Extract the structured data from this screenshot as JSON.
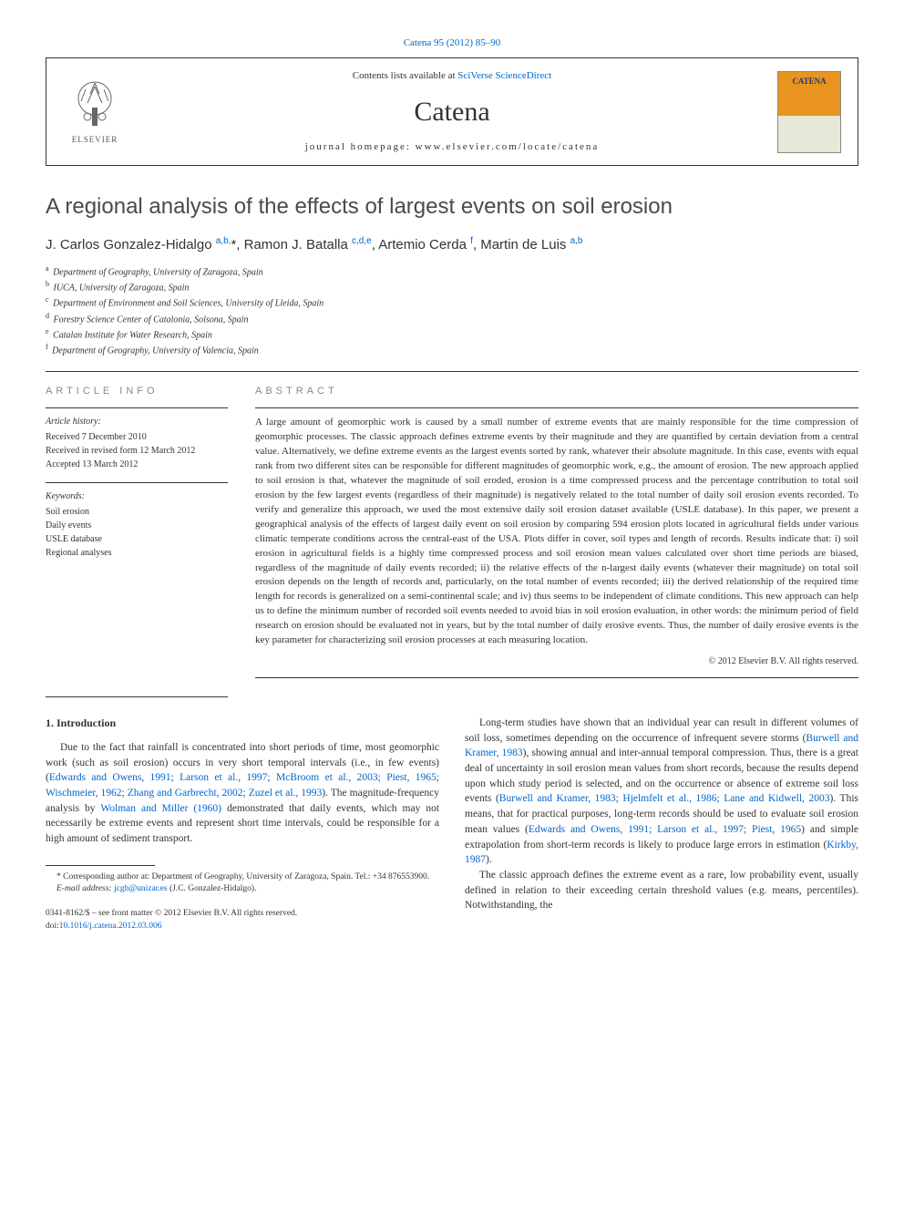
{
  "header": {
    "citation_link": "Catena 95 (2012) 85–90",
    "contents_prefix": "Contents lists available at ",
    "contents_link": "SciVerse ScienceDirect",
    "journal_name": "Catena",
    "homepage_label": "journal homepage: www.elsevier.com/locate/catena",
    "elsevier_label": "ELSEVIER",
    "cover_title": "CATENA"
  },
  "article": {
    "title": "A regional analysis of the effects of largest events on soil erosion",
    "authors_html": "J. Carlos Gonzalez-Hidalgo <sup>a,b,</sup><span class='star'>*</span>, Ramon J. Batalla <sup>c,d,e</sup>, Artemio Cerda <sup>f</sup>, Martin de Luis <sup>a,b</sup>",
    "affiliations": [
      {
        "key": "a",
        "text": "Department of Geography, University of Zaragoza, Spain"
      },
      {
        "key": "b",
        "text": "IUCA, University of Zaragoza, Spain"
      },
      {
        "key": "c",
        "text": "Department of Environment and Soil Sciences, University of Lleida, Spain"
      },
      {
        "key": "d",
        "text": "Forestry Science Center of Catalonia, Solsona, Spain"
      },
      {
        "key": "e",
        "text": "Catalan Institute for Water Research, Spain"
      },
      {
        "key": "f",
        "text": "Department of Geography, University of Valencia, Spain"
      }
    ]
  },
  "article_info": {
    "heading": "ARTICLE INFO",
    "history_label": "Article history:",
    "history": "Received 7 December 2010\nReceived in revised form 12 March 2012\nAccepted 13 March 2012",
    "keywords_label": "Keywords:",
    "keywords": "Soil erosion\nDaily events\nUSLE database\nRegional analyses"
  },
  "abstract": {
    "heading": "ABSTRACT",
    "text": "A large amount of geomorphic work is caused by a small number of extreme events that are mainly responsible for the time compression of geomorphic processes. The classic approach defines extreme events by their magnitude and they are quantified by certain deviation from a central value. Alternatively, we define extreme events as the largest events sorted by rank, whatever their absolute magnitude. In this case, events with equal rank from two different sites can be responsible for different magnitudes of geomorphic work, e.g., the amount of erosion. The new approach applied to soil erosion is that, whatever the magnitude of soil eroded, erosion is a time compressed process and the percentage contribution to total soil erosion by the few largest events (regardless of their magnitude) is negatively related to the total number of daily soil erosion events recorded. To verify and generalize this approach, we used the most extensive daily soil erosion dataset available (USLE database). In this paper, we present a geographical analysis of the effects of largest daily event on soil erosion by comparing 594 erosion plots located in agricultural fields under various climatic temperate conditions across the central-east of the USA. Plots differ in cover, soil types and length of records. Results indicate that: i) soil erosion in agricultural fields is a highly time compressed process and soil erosion mean values calculated over short time periods are biased, regardless of the magnitude of daily events recorded; ii) the relative effects of the n-largest daily events (whatever their magnitude) on total soil erosion depends on the length of records and, particularly, on the total number of events recorded; iii) the derived relationship of the required time length for records is generalized on a semi-continental scale; and iv) thus seems to be independent of climate conditions. This new approach can help us to define the minimum number of recorded soil events needed to avoid bias in soil erosion evaluation, in other words: the minimum period of field research on erosion should be evaluated not in years, but by the total number of daily erosive events. Thus, the number of daily erosive events is the key parameter for characterizing soil erosion processes at each measuring location.",
    "copyright": "© 2012 Elsevier B.V. All rights reserved."
  },
  "body": {
    "section_heading": "1. Introduction",
    "col1_p1_pre": "Due to the fact that rainfall is concentrated into short periods of time, most geomorphic work (such as soil erosion) occurs in very short temporal intervals (i.e., in few events) (",
    "col1_p1_link1": "Edwards and Owens, 1991; Larson et al., 1997; McBroom et al., 2003; Piest, 1965; Wischmeier, 1962; Zhang and Garbrecht, 2002; Zuzel et al., 1993",
    "col1_p1_mid": "). The magnitude-frequency analysis by ",
    "col1_p1_link2": "Wolman and Miller (1960)",
    "col1_p1_post": " demonstrated that daily events, which may not necessarily be extreme events and represent short time intervals, could be responsible for a high amount of sediment transport.",
    "col2_p1_pre": "Long-term studies have shown that an individual year can result in different volumes of soil loss, sometimes depending on the occurrence of infrequent severe storms (",
    "col2_p1_link1": "Burwell and Kramer, 1983",
    "col2_p1_mid1": "), showing annual and inter-annual temporal compression. Thus, there is a great deal of uncertainty in soil erosion mean values from short records, because the results depend upon which study period is selected, and on the occurrence or absence of extreme soil loss events (",
    "col2_p1_link2": "Burwell and Kramer, 1983; Hjelmfelt et al., 1986; Lane and Kidwell, 2003",
    "col2_p1_mid2": "). This means, that for practical purposes, long-term records should be used to evaluate soil erosion mean values (",
    "col2_p1_link3": "Edwards and Owens, 1991; Larson et al., 1997; Piest, 1965",
    "col2_p1_mid3": ") and simple extrapolation from short-term records is likely to produce large errors in estimation (",
    "col2_p1_link4": "Kirkby, 1987",
    "col2_p1_post": ").",
    "col2_p2": "The classic approach defines the extreme event as a rare, low probability event, usually defined in relation to their exceeding certain threshold values (e.g. means, percentiles). Notwithstanding, the"
  },
  "footnotes": {
    "corr_label": "* Corresponding author at: Department of Geography, University of Zaragoza, Spain. Tel.: +34 876553900.",
    "email_label": "E-mail address: ",
    "email": "jcgh@unizar.es",
    "email_suffix": " (J.C. Gonzalez-Hidalgo)."
  },
  "footer": {
    "issn": "0341-8162/$ – see front matter © 2012 Elsevier B.V. All rights reserved.",
    "doi_prefix": "doi:",
    "doi": "10.1016/j.catena.2012.03.006"
  },
  "colors": {
    "link": "#0066cc",
    "text": "#333333",
    "cover_bg": "#e8941f",
    "cover_body": "#e8e8d8",
    "cover_title": "#1a3a7a",
    "heading_gray": "#888888"
  },
  "typography": {
    "title_fontsize": 24,
    "journal_name_fontsize": 30,
    "authors_fontsize": 15,
    "body_fontsize": 11.5,
    "abstract_fontsize": 11,
    "affil_fontsize": 10,
    "footnote_fontsize": 9.5
  }
}
